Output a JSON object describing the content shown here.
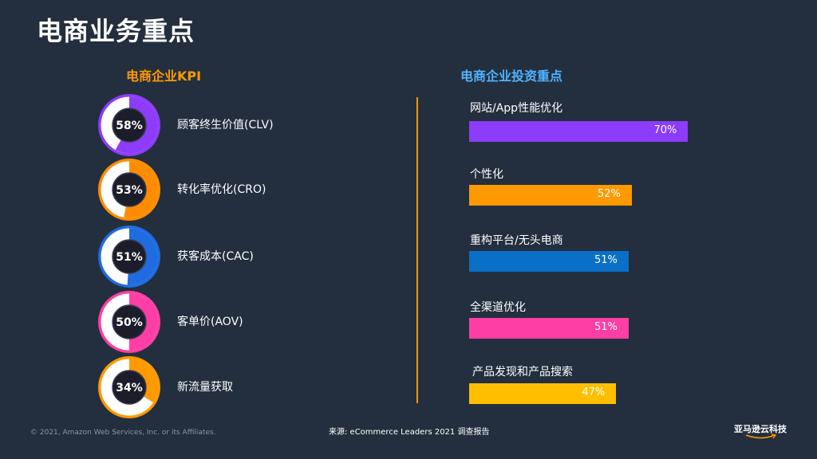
{
  "page": {
    "title": "电商业务重点",
    "copyright": "© 2021, Amazon Web Services, Inc. or its Affiliates.",
    "source": "来源: eCommerce Leaders 2021 调查报告",
    "brand": "亚马逊云科技"
  },
  "colors": {
    "background": "#232f3e",
    "accent_orange": "#ff9900",
    "accent_blue": "#4fb3ff",
    "purple": "#8c3cfa",
    "orange": "#ff9900",
    "blue": "#1f6be0",
    "magenta": "#ff3ea5",
    "yellow": "#ffb300"
  },
  "chart_data": [
    {
      "type": "pie",
      "title": "电商企业KPI",
      "items": [
        {
          "label": "顾客终生价值(CLV)",
          "value": 58,
          "display": "58%",
          "color": "#8c3cfa"
        },
        {
          "label": "转化率优化(CRO)",
          "value": 53,
          "display": "53%",
          "color": "#ff8c00"
        },
        {
          "label": "获客成本(CAC)",
          "value": 51,
          "display": "51%",
          "color": "#1f6be0"
        },
        {
          "label": "客单价(AOV)",
          "value": 50,
          "display": "50%",
          "color": "#ff3ea5"
        },
        {
          "label": "新流量获取",
          "value": 34,
          "display": "34%",
          "color": "#ff9900"
        }
      ]
    },
    {
      "type": "bar",
      "title": "电商企业投资重点",
      "categories": [
        "网站/App性能优化",
        "个性化",
        "重构平台/无头电商",
        "全渠道优化",
        "产品发现和产品搜索"
      ],
      "values": [
        70,
        52,
        51,
        51,
        47
      ],
      "labels": [
        "70%",
        "52%",
        "51%",
        "51%",
        "47%"
      ],
      "colors": [
        "#8c3cfa",
        "#ff9900",
        "#0a6fc7",
        "#ff3ea5",
        "#ffbf00"
      ],
      "xlim": [
        0,
        100
      ]
    }
  ]
}
